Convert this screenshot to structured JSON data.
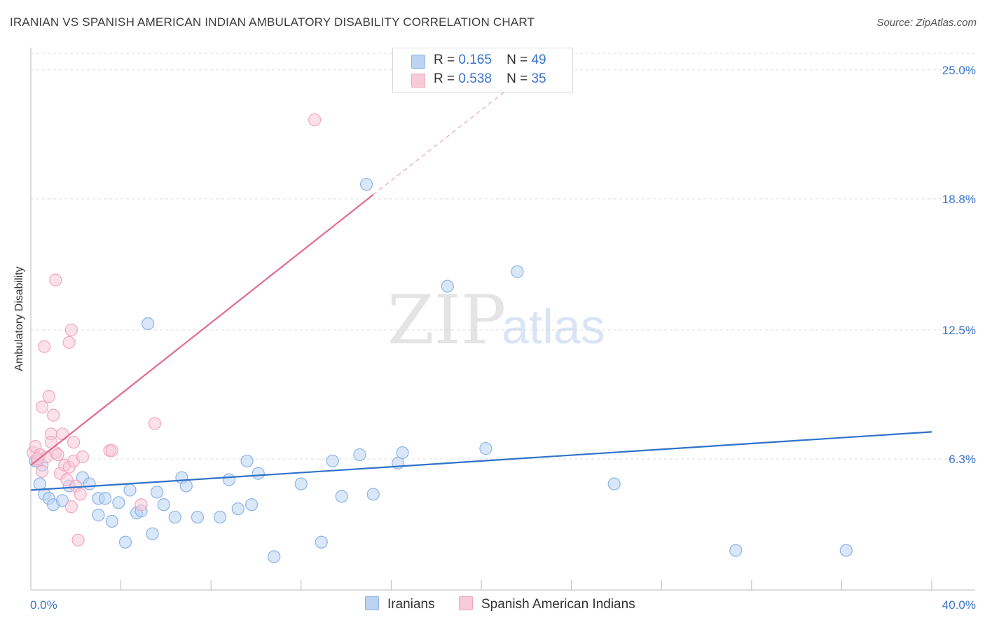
{
  "header": {
    "title": "IRANIAN VS SPANISH AMERICAN INDIAN AMBULATORY DISABILITY CORRELATION CHART",
    "source": "Source: ZipAtlas.com"
  },
  "watermark": {
    "zip": "ZIP",
    "atlas": "atlas"
  },
  "legend": {
    "rows": [
      {
        "r_label": "R =",
        "r_value": "0.165",
        "n_label": "N =",
        "n_value": "49"
      },
      {
        "r_label": "R =",
        "r_value": "0.538",
        "n_label": "N =",
        "n_value": "35"
      }
    ]
  },
  "chart_data": {
    "type": "scatter",
    "ylabel": "Ambulatory Disability",
    "xlim": [
      0,
      40
    ],
    "ylim": [
      0,
      25.8
    ],
    "x_tick_labels": [
      {
        "value": 0,
        "label": "0.0%"
      },
      {
        "value": 40,
        "label": "40.0%"
      }
    ],
    "y_tick_labels": [
      {
        "value": 25.0,
        "label": "25.0%"
      },
      {
        "value": 18.8,
        "label": "18.8%"
      },
      {
        "value": 12.5,
        "label": "12.5%"
      },
      {
        "value": 6.3,
        "label": "6.3%"
      }
    ],
    "grid": true,
    "legend_position": "top-center",
    "series": [
      {
        "name": "Iranians",
        "color": "#8ab4e8",
        "fill": "#bcd4f2",
        "trend_color": "#2f72c9",
        "trend": {
          "x0": 0,
          "y0": 4.8,
          "x1": 40,
          "y1": 7.6
        },
        "points": [
          [
            0.2,
            6.2
          ],
          [
            0.4,
            5.1
          ],
          [
            0.6,
            4.6
          ],
          [
            0.8,
            4.4
          ],
          [
            1.0,
            4.1
          ],
          [
            1.4,
            4.3
          ],
          [
            1.7,
            5.0
          ],
          [
            2.3,
            5.4
          ],
          [
            2.6,
            5.1
          ],
          [
            3.0,
            4.4
          ],
          [
            3.0,
            3.6
          ],
          [
            3.3,
            4.4
          ],
          [
            3.6,
            3.3
          ],
          [
            3.9,
            4.2
          ],
          [
            4.2,
            2.3
          ],
          [
            4.4,
            4.8
          ],
          [
            4.7,
            3.7
          ],
          [
            4.9,
            3.8
          ],
          [
            5.2,
            12.8
          ],
          [
            5.4,
            2.7
          ],
          [
            5.6,
            4.7
          ],
          [
            5.9,
            4.1
          ],
          [
            6.4,
            3.5
          ],
          [
            6.7,
            5.4
          ],
          [
            6.9,
            5.0
          ],
          [
            7.4,
            3.5
          ],
          [
            8.4,
            3.5
          ],
          [
            8.8,
            5.3
          ],
          [
            9.2,
            3.9
          ],
          [
            9.6,
            6.2
          ],
          [
            9.8,
            4.1
          ],
          [
            10.1,
            5.6
          ],
          [
            10.8,
            1.6
          ],
          [
            12.0,
            5.1
          ],
          [
            12.9,
            2.3
          ],
          [
            13.4,
            6.2
          ],
          [
            13.8,
            4.5
          ],
          [
            14.6,
            6.5
          ],
          [
            14.9,
            19.5
          ],
          [
            15.2,
            4.6
          ],
          [
            16.3,
            6.1
          ],
          [
            16.5,
            6.6
          ],
          [
            18.5,
            14.6
          ],
          [
            20.2,
            6.8
          ],
          [
            21.6,
            15.3
          ],
          [
            25.9,
            5.1
          ],
          [
            31.3,
            1.9
          ],
          [
            36.2,
            1.9
          ],
          [
            0.5,
            6.0
          ]
        ]
      },
      {
        "name": "Spanish American Indians",
        "color": "#f2a6bd",
        "fill": "#f8cbd8",
        "trend_color": "#e06a92",
        "trend": {
          "x0": 0,
          "y0": 6.0,
          "x1": 15.2,
          "y1": 19.0,
          "x_dash_end": 21.8,
          "y_dash_end": 24.6
        },
        "points": [
          [
            0.1,
            6.6
          ],
          [
            0.2,
            6.9
          ],
          [
            0.3,
            6.2
          ],
          [
            0.4,
            6.5
          ],
          [
            0.5,
            5.7
          ],
          [
            0.5,
            8.8
          ],
          [
            0.6,
            11.7
          ],
          [
            0.7,
            6.4
          ],
          [
            0.8,
            9.3
          ],
          [
            0.9,
            7.5
          ],
          [
            0.9,
            7.1
          ],
          [
            1.0,
            8.4
          ],
          [
            1.1,
            6.6
          ],
          [
            1.1,
            14.9
          ],
          [
            1.2,
            6.5
          ],
          [
            1.3,
            5.6
          ],
          [
            1.4,
            7.5
          ],
          [
            1.5,
            6.0
          ],
          [
            1.6,
            5.3
          ],
          [
            1.7,
            11.9
          ],
          [
            1.7,
            5.9
          ],
          [
            1.8,
            12.5
          ],
          [
            1.8,
            4.0
          ],
          [
            1.9,
            7.1
          ],
          [
            1.9,
            6.2
          ],
          [
            2.0,
            5.0
          ],
          [
            2.1,
            2.4
          ],
          [
            2.2,
            4.6
          ],
          [
            2.3,
            6.4
          ],
          [
            3.5,
            6.7
          ],
          [
            3.6,
            6.7
          ],
          [
            4.9,
            4.1
          ],
          [
            5.5,
            8.0
          ],
          [
            12.6,
            22.6
          ],
          [
            0.3,
            6.3
          ]
        ]
      }
    ]
  }
}
